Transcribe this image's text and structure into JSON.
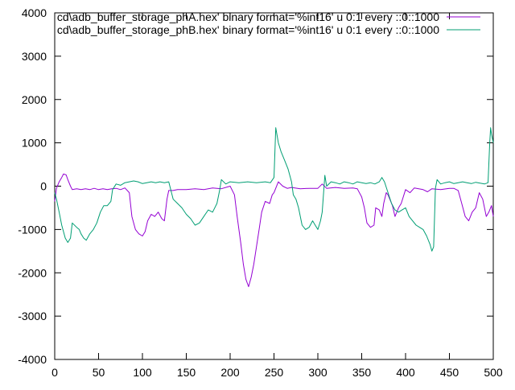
{
  "chart_data": {
    "type": "line",
    "title": "",
    "xlabel": "",
    "ylabel": "",
    "xlim": [
      0,
      500
    ],
    "ylim": [
      -4000,
      4000
    ],
    "x_ticks": [
      0,
      50,
      100,
      150,
      200,
      250,
      300,
      350,
      400,
      450,
      500
    ],
    "y_ticks": [
      -4000,
      -3000,
      -2000,
      -1000,
      0,
      1000,
      2000,
      3000,
      4000
    ],
    "grid": false,
    "legend_position": "top-right",
    "series": [
      {
        "name": "cd\\adb_buffer_storage_phA.hex' binary format='%int16' u 0:1 every ::0::1000",
        "color": "#9400d3",
        "points": [
          [
            0,
            -350
          ],
          [
            2,
            -50
          ],
          [
            5,
            100
          ],
          [
            8,
            200
          ],
          [
            10,
            280
          ],
          [
            13,
            260
          ],
          [
            15,
            150
          ],
          [
            18,
            0
          ],
          [
            20,
            -80
          ],
          [
            25,
            -60
          ],
          [
            30,
            -80
          ],
          [
            35,
            -60
          ],
          [
            40,
            -80
          ],
          [
            45,
            -50
          ],
          [
            50,
            -80
          ],
          [
            55,
            -60
          ],
          [
            60,
            -80
          ],
          [
            65,
            -60
          ],
          [
            70,
            -50
          ],
          [
            75,
            -80
          ],
          [
            80,
            -40
          ],
          [
            85,
            -150
          ],
          [
            88,
            -700
          ],
          [
            92,
            -1000
          ],
          [
            96,
            -1100
          ],
          [
            100,
            -1150
          ],
          [
            103,
            -1050
          ],
          [
            106,
            -800
          ],
          [
            110,
            -650
          ],
          [
            114,
            -700
          ],
          [
            118,
            -600
          ],
          [
            122,
            -750
          ],
          [
            125,
            -800
          ],
          [
            128,
            -300
          ],
          [
            130,
            -100
          ],
          [
            135,
            -100
          ],
          [
            140,
            -80
          ],
          [
            150,
            -80
          ],
          [
            160,
            -60
          ],
          [
            170,
            -80
          ],
          [
            180,
            -40
          ],
          [
            190,
            -60
          ],
          [
            200,
            0
          ],
          [
            205,
            -200
          ],
          [
            208,
            -700
          ],
          [
            212,
            -1300
          ],
          [
            215,
            -1800
          ],
          [
            218,
            -2150
          ],
          [
            221,
            -2320
          ],
          [
            224,
            -2100
          ],
          [
            227,
            -1800
          ],
          [
            230,
            -1400
          ],
          [
            233,
            -1000
          ],
          [
            236,
            -600
          ],
          [
            240,
            -350
          ],
          [
            245,
            -400
          ],
          [
            248,
            -200
          ],
          [
            250,
            -150
          ],
          [
            255,
            100
          ],
          [
            260,
            0
          ],
          [
            265,
            -50
          ],
          [
            270,
            -30
          ],
          [
            280,
            -60
          ],
          [
            290,
            -50
          ],
          [
            300,
            -50
          ],
          [
            305,
            50
          ],
          [
            310,
            -50
          ],
          [
            320,
            -30
          ],
          [
            330,
            -50
          ],
          [
            340,
            -40
          ],
          [
            345,
            -60
          ],
          [
            350,
            -250
          ],
          [
            353,
            -500
          ],
          [
            356,
            -850
          ],
          [
            360,
            -950
          ],
          [
            364,
            -900
          ],
          [
            366,
            -500
          ],
          [
            370,
            -550
          ],
          [
            373,
            -700
          ],
          [
            375,
            -400
          ],
          [
            378,
            -150
          ],
          [
            380,
            -200
          ],
          [
            385,
            -450
          ],
          [
            388,
            -700
          ],
          [
            392,
            -500
          ],
          [
            395,
            -400
          ],
          [
            400,
            -80
          ],
          [
            405,
            -150
          ],
          [
            410,
            -40
          ],
          [
            420,
            -80
          ],
          [
            425,
            -130
          ],
          [
            430,
            -60
          ],
          [
            440,
            -80
          ],
          [
            450,
            -50
          ],
          [
            455,
            -50
          ],
          [
            460,
            -100
          ],
          [
            464,
            -400
          ],
          [
            468,
            -700
          ],
          [
            472,
            -800
          ],
          [
            476,
            -600
          ],
          [
            480,
            -500
          ],
          [
            484,
            -150
          ],
          [
            488,
            -300
          ],
          [
            492,
            -700
          ],
          [
            495,
            -600
          ],
          [
            498,
            -450
          ],
          [
            500,
            -700
          ]
        ]
      },
      {
        "name": "cd\\adb_buffer_storage_phB.hex' binary format='%int16' u 0:1 every ::0::1000",
        "color": "#009e73",
        "points": [
          [
            0,
            -150
          ],
          [
            2,
            -300
          ],
          [
            5,
            -600
          ],
          [
            8,
            -900
          ],
          [
            12,
            -1200
          ],
          [
            15,
            -1300
          ],
          [
            18,
            -1200
          ],
          [
            20,
            -850
          ],
          [
            25,
            -950
          ],
          [
            28,
            -1000
          ],
          [
            30,
            -1100
          ],
          [
            33,
            -1200
          ],
          [
            36,
            -1250
          ],
          [
            40,
            -1100
          ],
          [
            44,
            -1000
          ],
          [
            48,
            -850
          ],
          [
            52,
            -600
          ],
          [
            56,
            -450
          ],
          [
            60,
            -450
          ],
          [
            64,
            -350
          ],
          [
            66,
            -80
          ],
          [
            70,
            50
          ],
          [
            75,
            20
          ],
          [
            80,
            80
          ],
          [
            85,
            100
          ],
          [
            90,
            120
          ],
          [
            95,
            100
          ],
          [
            100,
            60
          ],
          [
            105,
            80
          ],
          [
            110,
            100
          ],
          [
            115,
            80
          ],
          [
            120,
            100
          ],
          [
            125,
            80
          ],
          [
            130,
            100
          ],
          [
            135,
            -300
          ],
          [
            140,
            -400
          ],
          [
            145,
            -500
          ],
          [
            150,
            -650
          ],
          [
            155,
            -750
          ],
          [
            160,
            -900
          ],
          [
            165,
            -850
          ],
          [
            170,
            -700
          ],
          [
            175,
            -550
          ],
          [
            180,
            -600
          ],
          [
            185,
            -400
          ],
          [
            188,
            -100
          ],
          [
            190,
            150
          ],
          [
            195,
            50
          ],
          [
            200,
            100
          ],
          [
            210,
            80
          ],
          [
            220,
            100
          ],
          [
            230,
            80
          ],
          [
            240,
            100
          ],
          [
            246,
            80
          ],
          [
            250,
            200
          ],
          [
            252,
            1350
          ],
          [
            255,
            1000
          ],
          [
            258,
            800
          ],
          [
            262,
            600
          ],
          [
            266,
            400
          ],
          [
            270,
            100
          ],
          [
            272,
            -200
          ],
          [
            275,
            -300
          ],
          [
            278,
            -500
          ],
          [
            282,
            -900
          ],
          [
            286,
            -1000
          ],
          [
            290,
            -950
          ],
          [
            294,
            -800
          ],
          [
            297,
            -900
          ],
          [
            300,
            -1000
          ],
          [
            303,
            -800
          ],
          [
            305,
            -600
          ],
          [
            308,
            250
          ],
          [
            310,
            0
          ],
          [
            315,
            100
          ],
          [
            320,
            80
          ],
          [
            325,
            50
          ],
          [
            330,
            100
          ],
          [
            335,
            80
          ],
          [
            340,
            50
          ],
          [
            345,
            100
          ],
          [
            350,
            80
          ],
          [
            355,
            60
          ],
          [
            360,
            80
          ],
          [
            365,
            50
          ],
          [
            370,
            100
          ],
          [
            373,
            200
          ],
          [
            376,
            100
          ],
          [
            380,
            -150
          ],
          [
            384,
            -400
          ],
          [
            388,
            -550
          ],
          [
            392,
            -600
          ],
          [
            396,
            -550
          ],
          [
            400,
            -500
          ],
          [
            404,
            -700
          ],
          [
            408,
            -800
          ],
          [
            412,
            -900
          ],
          [
            416,
            -950
          ],
          [
            420,
            -1000
          ],
          [
            424,
            -1150
          ],
          [
            428,
            -1350
          ],
          [
            430,
            -1500
          ],
          [
            432,
            -1400
          ],
          [
            434,
            -50
          ],
          [
            436,
            150
          ],
          [
            440,
            50
          ],
          [
            445,
            80
          ],
          [
            450,
            100
          ],
          [
            455,
            60
          ],
          [
            460,
            80
          ],
          [
            465,
            100
          ],
          [
            470,
            80
          ],
          [
            475,
            60
          ],
          [
            480,
            90
          ],
          [
            485,
            70
          ],
          [
            490,
            50
          ],
          [
            494,
            80
          ],
          [
            496,
            1000
          ],
          [
            497,
            1350
          ],
          [
            498,
            1200
          ],
          [
            500,
            1000
          ]
        ]
      }
    ]
  }
}
